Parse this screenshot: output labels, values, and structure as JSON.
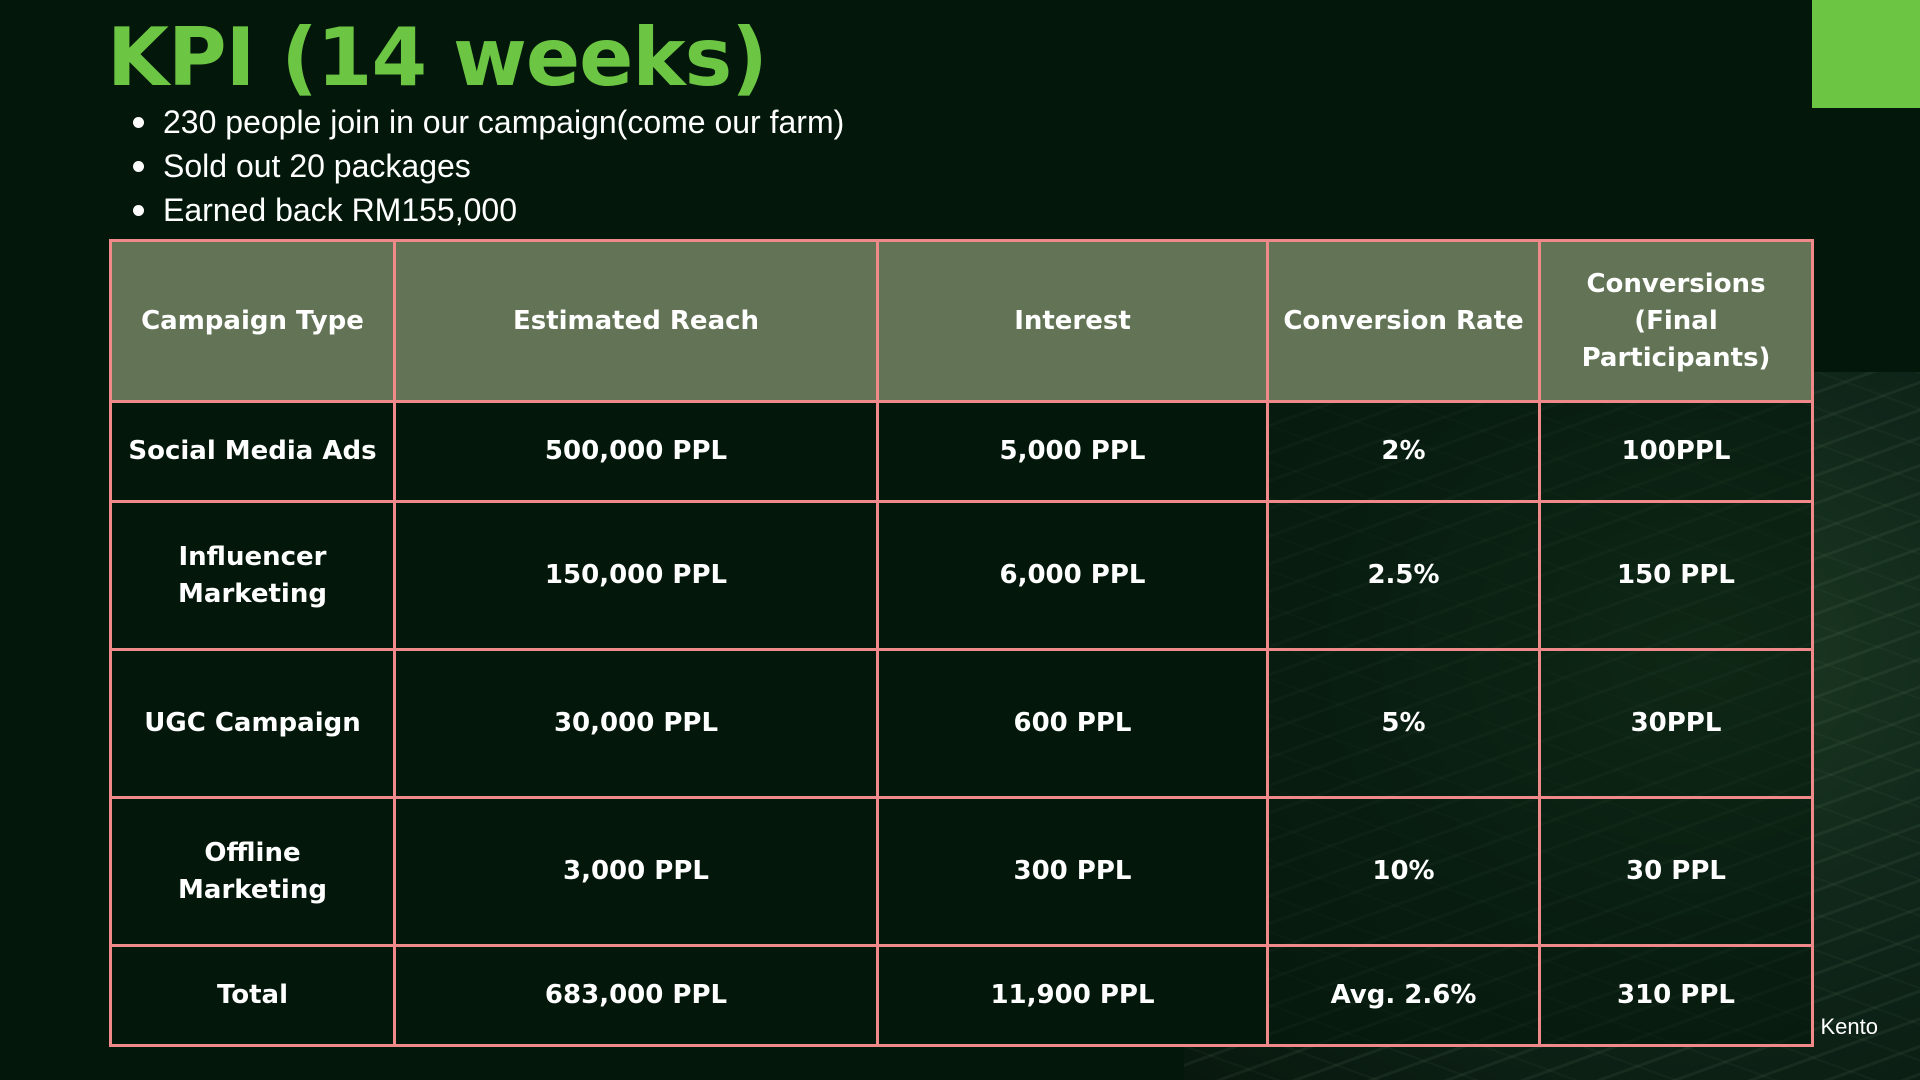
{
  "title": "KPI (14 weeks)",
  "bullets": [
    "230 people join in our campaign(come our farm)",
    "Sold out 20 packages",
    "Earned back RM155,000"
  ],
  "table": {
    "headers": [
      "Campaign Type",
      "Estimated Reach",
      "Interest",
      "Conversion Rate",
      "Conversions (Final Participants)"
    ],
    "rows": [
      [
        "Social Media Ads",
        "500,000 PPL",
        "5,000 PPL",
        "2%",
        "100PPL"
      ],
      [
        "Influencer Marketing",
        "150,000 PPL",
        "6,000 PPL",
        "2.5%",
        "150 PPL"
      ],
      [
        "UGC Campaign",
        "30,000 PPL",
        "600 PPL",
        "5%",
        "30PPL"
      ],
      [
        "Offline Marketing",
        "3,000 PPL",
        "300 PPL",
        "10%",
        "30 PPL"
      ],
      [
        "Total",
        "683,000 PPL",
        "11,900 PPL",
        "Avg. 2.6%",
        "310 PPL"
      ]
    ]
  },
  "footer": {
    "name": "Kento"
  },
  "colors": {
    "background": "#03180b",
    "accent_green": "#6cc644",
    "header_fill": "#637456",
    "table_border": "#f08a8a"
  }
}
